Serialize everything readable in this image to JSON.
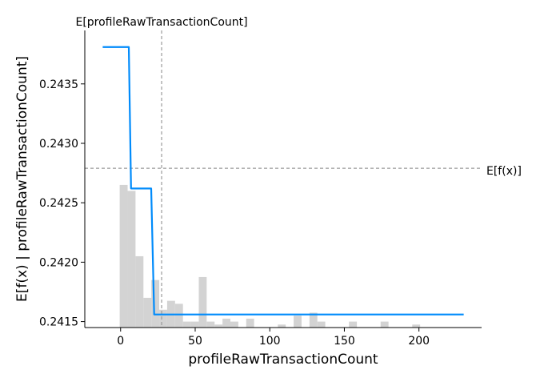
{
  "chart_data": {
    "type": "line",
    "title": "",
    "xlabel": "profileRawTransactionCount",
    "ylabel": "E[f(x) | profileRawTransactionCount]",
    "xlim": [
      -24,
      242
    ],
    "ylim": [
      0.24145,
      0.24395
    ],
    "x_ticks": [
      0,
      50,
      100,
      150,
      200
    ],
    "y_ticks": [
      0.2415,
      0.242,
      0.2425,
      0.243,
      0.2435
    ],
    "y_tick_labels": [
      "0.2415",
      "0.2420",
      "0.2425",
      "0.2430",
      "0.2435"
    ],
    "grid": false,
    "series": [
      {
        "color": "#008bfb",
        "points": [
          [
            -12,
            0.24381
          ],
          [
            5.5,
            0.24381
          ],
          [
            7,
            0.24262
          ],
          [
            20.5,
            0.24262
          ],
          [
            22.5,
            0.24156
          ],
          [
            230,
            0.24156
          ]
        ]
      }
    ],
    "reference_lines": {
      "expected_x": {
        "label": "E[profileRawTransactionCount]",
        "value": 27.5,
        "color": "#999999"
      },
      "expected_y": {
        "label": "E[f(x)]",
        "value": 0.24279,
        "color": "#999999"
      }
    },
    "histogram": {
      "color": "#d3d3d3",
      "bin_width": 5.3,
      "bins": [
        [
          -0.6,
          0.48
        ],
        [
          4.7,
          0.46
        ],
        [
          10.0,
          0.24
        ],
        [
          15.3,
          0.1
        ],
        [
          20.6,
          0.16
        ],
        [
          25.9,
          0.06
        ],
        [
          31.2,
          0.09
        ],
        [
          36.5,
          0.08
        ],
        [
          41.8,
          0.02
        ],
        [
          47.1,
          0.02
        ],
        [
          52.4,
          0.17
        ],
        [
          57.7,
          0.02
        ],
        [
          63.0,
          0.01
        ],
        [
          68.3,
          0.03
        ],
        [
          73.6,
          0.02
        ],
        [
          84.2,
          0.03
        ],
        [
          105.4,
          0.01
        ],
        [
          116.0,
          0.04
        ],
        [
          126.6,
          0.05
        ],
        [
          131.9,
          0.02
        ],
        [
          153.1,
          0.02
        ],
        [
          174.3,
          0.02
        ],
        [
          195.5,
          0.01
        ]
      ]
    }
  }
}
